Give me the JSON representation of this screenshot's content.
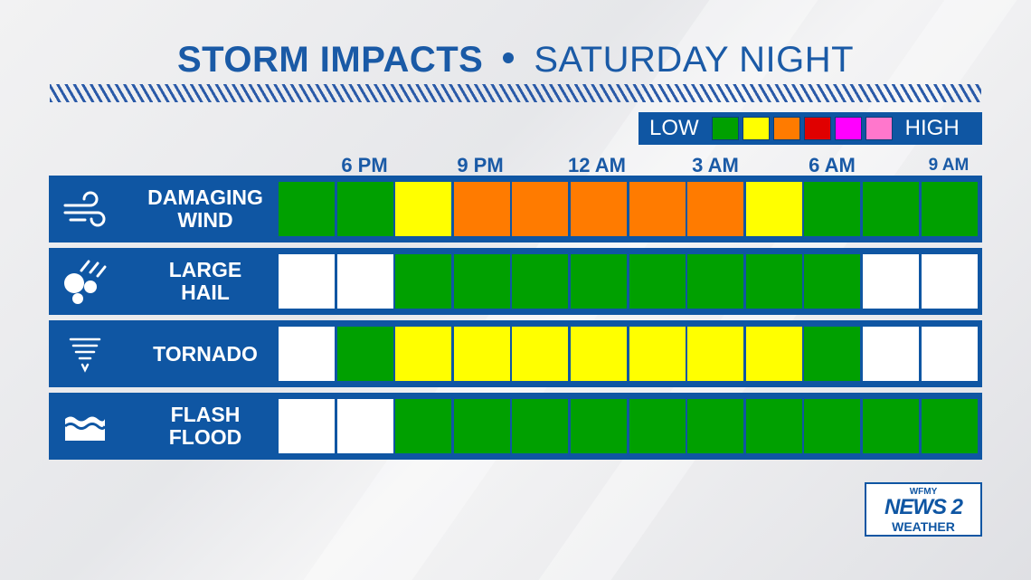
{
  "title": {
    "main": "STORM IMPACTS",
    "sub": "SATURDAY NIGHT"
  },
  "legend": {
    "low_label": "LOW",
    "high_label": "HIGH",
    "colors": [
      "#00a000",
      "#ffff00",
      "#ff7b00",
      "#e00000",
      "#ff00ff",
      "#ff77cc"
    ]
  },
  "colors": {
    "none": "#ffffff",
    "green": "#00a000",
    "yellow": "#ffff00",
    "orange": "#ff7b00"
  },
  "chart_data": {
    "type": "heatmap",
    "title": "STORM IMPACTS • SATURDAY NIGHT",
    "time_labels": [
      "6 PM",
      "9 PM",
      "12 AM",
      "3 AM",
      "6 AM",
      "9 AM"
    ],
    "scale": [
      "none",
      "low/green",
      "yellow",
      "orange",
      "red",
      "magenta",
      "pink/high"
    ],
    "rows": [
      {
        "name": "DAMAGING WIND",
        "icon": "wind-icon",
        "levels": [
          "green",
          "green",
          "yellow",
          "orange",
          "orange",
          "orange",
          "orange",
          "orange",
          "yellow",
          "green",
          "green",
          "green"
        ]
      },
      {
        "name": "LARGE HAIL",
        "icon": "hail-icon",
        "levels": [
          "none",
          "none",
          "green",
          "green",
          "green",
          "green",
          "green",
          "green",
          "green",
          "green",
          "none",
          "none"
        ]
      },
      {
        "name": "TORNADO",
        "icon": "tornado-icon",
        "levels": [
          "none",
          "green",
          "yellow",
          "yellow",
          "yellow",
          "yellow",
          "yellow",
          "yellow",
          "yellow",
          "green",
          "none",
          "none"
        ]
      },
      {
        "name": "FLASH FLOOD",
        "icon": "flood-icon",
        "levels": [
          "none",
          "none",
          "green",
          "green",
          "green",
          "green",
          "green",
          "green",
          "green",
          "green",
          "green",
          "green"
        ]
      }
    ]
  },
  "rows_display": [
    {
      "line1": "DAMAGING",
      "line2": "WIND"
    },
    {
      "line1": "LARGE",
      "line2": "HAIL"
    },
    {
      "line1": "TORNADO",
      "line2": ""
    },
    {
      "line1": "FLASH",
      "line2": "FLOOD"
    }
  ],
  "logo": {
    "top": "WFMY",
    "main": "NEWS 2",
    "bottom": "WEATHER"
  }
}
